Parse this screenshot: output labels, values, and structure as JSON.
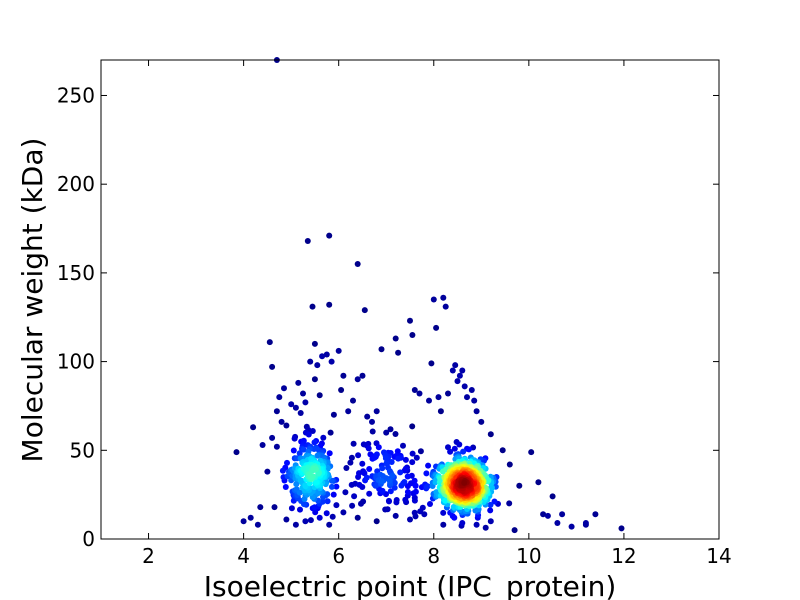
{
  "chart_data": {
    "type": "scatter",
    "title": "",
    "xlabel": "Isoelectric point (IPC_protein)",
    "ylabel": "Molecular weight (kDa)",
    "xlim": [
      1,
      14
    ],
    "ylim": [
      0,
      270
    ],
    "xticks": [
      2,
      4,
      6,
      8,
      10,
      12,
      14
    ],
    "xtick_labels": [
      "2",
      "4",
      "6",
      "8",
      "10",
      "12",
      "14"
    ],
    "yticks": [
      0,
      50,
      100,
      150,
      200,
      250
    ],
    "ytick_labels": [
      "0",
      "50",
      "100",
      "150",
      "200",
      "250"
    ],
    "grid": false,
    "legend": "none",
    "color_encoding": "point density (jet colormap: dark blue = sparse, dark red = dense)",
    "colormap": [
      "#00007f",
      "#0000ff",
      "#007fff",
      "#00ffff",
      "#7fff7f",
      "#ffff00",
      "#ff7f00",
      "#ff0000",
      "#7f0000"
    ],
    "points": [
      [
        4.7,
        270
      ],
      [
        3.85,
        49
      ],
      [
        4.0,
        10
      ],
      [
        4.15,
        12
      ],
      [
        4.2,
        63
      ],
      [
        4.3,
        8
      ],
      [
        4.35,
        18
      ],
      [
        4.4,
        53
      ],
      [
        4.5,
        38
      ],
      [
        4.55,
        111
      ],
      [
        4.6,
        97
      ],
      [
        4.6,
        57
      ],
      [
        4.65,
        18
      ],
      [
        4.7,
        52
      ],
      [
        4.7,
        72
      ],
      [
        4.75,
        80
      ],
      [
        4.8,
        66
      ],
      [
        4.85,
        85
      ],
      [
        4.9,
        64
      ],
      [
        5.0,
        76
      ],
      [
        5.1,
        74
      ],
      [
        5.15,
        88
      ],
      [
        5.2,
        71
      ],
      [
        5.25,
        82
      ],
      [
        5.3,
        77
      ],
      [
        5.35,
        168
      ],
      [
        5.4,
        100
      ],
      [
        5.45,
        131
      ],
      [
        5.5,
        110
      ],
      [
        5.5,
        90
      ],
      [
        5.55,
        98
      ],
      [
        5.6,
        81
      ],
      [
        5.65,
        103
      ],
      [
        5.75,
        104
      ],
      [
        5.8,
        171
      ],
      [
        5.8,
        132
      ],
      [
        5.85,
        100
      ],
      [
        5.9,
        70
      ],
      [
        6.0,
        106
      ],
      [
        6.05,
        84
      ],
      [
        6.1,
        92
      ],
      [
        6.2,
        72
      ],
      [
        6.3,
        78
      ],
      [
        6.4,
        90
      ],
      [
        6.4,
        155
      ],
      [
        6.5,
        92
      ],
      [
        6.55,
        129
      ],
      [
        6.6,
        69
      ],
      [
        6.7,
        66
      ],
      [
        6.8,
        72
      ],
      [
        6.9,
        107
      ],
      [
        7.0,
        60
      ],
      [
        7.2,
        113
      ],
      [
        7.25,
        105
      ],
      [
        7.5,
        123
      ],
      [
        7.55,
        115
      ],
      [
        7.6,
        84
      ],
      [
        7.7,
        82
      ],
      [
        7.9,
        78
      ],
      [
        7.95,
        99
      ],
      [
        8.0,
        135
      ],
      [
        8.05,
        119
      ],
      [
        8.1,
        80
      ],
      [
        8.15,
        72
      ],
      [
        8.2,
        136
      ],
      [
        8.25,
        131
      ],
      [
        8.3,
        82
      ],
      [
        8.4,
        95
      ],
      [
        8.45,
        98
      ],
      [
        8.5,
        89
      ],
      [
        8.55,
        92
      ],
      [
        8.6,
        95
      ],
      [
        8.65,
        86
      ],
      [
        8.7,
        80
      ],
      [
        8.8,
        84
      ],
      [
        8.85,
        78
      ],
      [
        8.9,
        72
      ],
      [
        9.0,
        66
      ],
      [
        9.2,
        59
      ],
      [
        9.45,
        50
      ],
      [
        9.6,
        42
      ],
      [
        9.8,
        30
      ],
      [
        10.05,
        49
      ],
      [
        10.2,
        32
      ],
      [
        10.3,
        14
      ],
      [
        10.4,
        13
      ],
      [
        10.5,
        24
      ],
      [
        10.6,
        9
      ],
      [
        10.7,
        14
      ],
      [
        10.9,
        7
      ],
      [
        11.2,
        9
      ],
      [
        11.2,
        8
      ],
      [
        11.4,
        14
      ],
      [
        11.95,
        6
      ],
      [
        4.9,
        11
      ],
      [
        5.1,
        8
      ],
      [
        5.3,
        10
      ],
      [
        5.6,
        12
      ],
      [
        5.8,
        8
      ],
      [
        6.1,
        15
      ],
      [
        6.4,
        12
      ],
      [
        6.8,
        10
      ],
      [
        7.2,
        13
      ],
      [
        7.5,
        11
      ],
      [
        7.8,
        14
      ],
      [
        8.2,
        8
      ],
      [
        8.6,
        9
      ],
      [
        8.9,
        8
      ],
      [
        9.2,
        10
      ],
      [
        9.7,
        5
      ]
    ]
  }
}
